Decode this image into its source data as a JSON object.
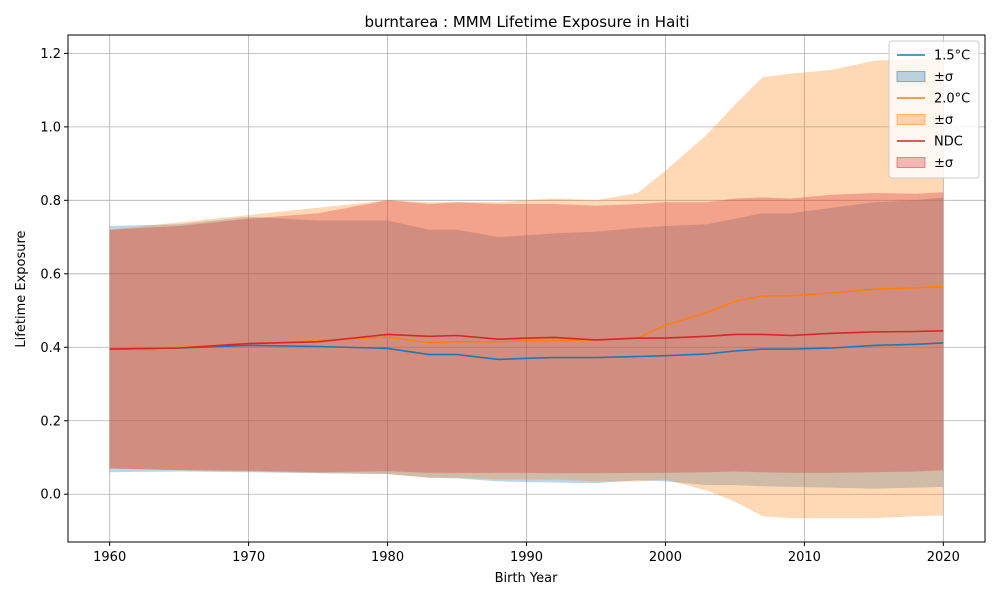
{
  "chart_data": {
    "type": "line",
    "title": "burntarea : MMM Lifetime Exposure in Haiti",
    "xlabel": "Birth Year",
    "ylabel": "Lifetime Exposure",
    "xlim": [
      1957,
      2023
    ],
    "ylim": [
      -0.13,
      1.25
    ],
    "xticks": [
      1960,
      1970,
      1980,
      1990,
      2000,
      2010,
      2020
    ],
    "xtick_labels": [
      "1960",
      "1970",
      "1980",
      "1990",
      "2000",
      "2010",
      "2020"
    ],
    "yticks": [
      0.0,
      0.2,
      0.4,
      0.6,
      0.8,
      1.0,
      1.2
    ],
    "ytick_labels": [
      "0.0",
      "0.2",
      "0.4",
      "0.6",
      "0.8",
      "1.0",
      "1.2"
    ],
    "grid": true,
    "legend_position": "top-right",
    "x": [
      1960,
      1965,
      1970,
      1975,
      1980,
      1983,
      1985,
      1988,
      1990,
      1992,
      1995,
      1998,
      2000,
      2003,
      2005,
      2007,
      2009,
      2012,
      2015,
      2018,
      2020
    ],
    "series": [
      {
        "name": "1.5°C",
        "band_label": "±σ",
        "color": "#1f77b4",
        "band_color": "#1f77b4",
        "band_alpha": 0.3,
        "mean": [
          0.395,
          0.398,
          0.405,
          0.402,
          0.397,
          0.38,
          0.38,
          0.367,
          0.37,
          0.372,
          0.372,
          0.375,
          0.377,
          0.382,
          0.39,
          0.395,
          0.395,
          0.398,
          0.405,
          0.408,
          0.412
        ],
        "upper": [
          0.73,
          0.735,
          0.755,
          0.745,
          0.745,
          0.72,
          0.72,
          0.7,
          0.705,
          0.71,
          0.715,
          0.725,
          0.73,
          0.735,
          0.75,
          0.765,
          0.765,
          0.78,
          0.795,
          0.8,
          0.808
        ],
        "lower": [
          0.06,
          0.062,
          0.06,
          0.057,
          0.055,
          0.045,
          0.043,
          0.035,
          0.033,
          0.032,
          0.03,
          0.038,
          0.035,
          0.025,
          0.025,
          0.022,
          0.02,
          0.018,
          0.015,
          0.018,
          0.02
        ]
      },
      {
        "name": "2.0°C",
        "band_label": "±σ",
        "color": "#ff7f0e",
        "band_color": "#ff7f0e",
        "band_alpha": 0.3,
        "mean": [
          0.395,
          0.4,
          0.41,
          0.418,
          0.428,
          0.412,
          0.415,
          0.415,
          0.418,
          0.418,
          0.42,
          0.425,
          0.46,
          0.495,
          0.525,
          0.54,
          0.54,
          0.548,
          0.558,
          0.562,
          0.565
        ],
        "upper": [
          0.72,
          0.74,
          0.76,
          0.78,
          0.8,
          0.795,
          0.795,
          0.795,
          0.8,
          0.805,
          0.8,
          0.82,
          0.88,
          0.98,
          1.06,
          1.135,
          1.145,
          1.155,
          1.18,
          1.185,
          1.19
        ],
        "lower": [
          0.07,
          0.065,
          0.062,
          0.058,
          0.055,
          0.045,
          0.045,
          0.04,
          0.04,
          0.04,
          0.035,
          0.035,
          0.04,
          0.01,
          -0.02,
          -0.06,
          -0.065,
          -0.065,
          -0.065,
          -0.06,
          -0.058
        ]
      },
      {
        "name": "NDC",
        "band_label": "±σ",
        "color": "#d62728",
        "band_color": "#d62728",
        "band_alpha": 0.3,
        "mean": [
          0.395,
          0.398,
          0.41,
          0.415,
          0.435,
          0.43,
          0.432,
          0.422,
          0.425,
          0.427,
          0.42,
          0.425,
          0.425,
          0.43,
          0.435,
          0.435,
          0.432,
          0.438,
          0.442,
          0.443,
          0.445
        ],
        "upper": [
          0.72,
          0.73,
          0.75,
          0.765,
          0.8,
          0.79,
          0.795,
          0.79,
          0.79,
          0.79,
          0.785,
          0.79,
          0.795,
          0.795,
          0.805,
          0.808,
          0.805,
          0.815,
          0.82,
          0.818,
          0.822
        ],
        "lower": [
          0.07,
          0.066,
          0.064,
          0.06,
          0.063,
          0.058,
          0.058,
          0.058,
          0.058,
          0.057,
          0.057,
          0.058,
          0.058,
          0.06,
          0.062,
          0.06,
          0.058,
          0.058,
          0.06,
          0.062,
          0.065
        ]
      }
    ]
  }
}
